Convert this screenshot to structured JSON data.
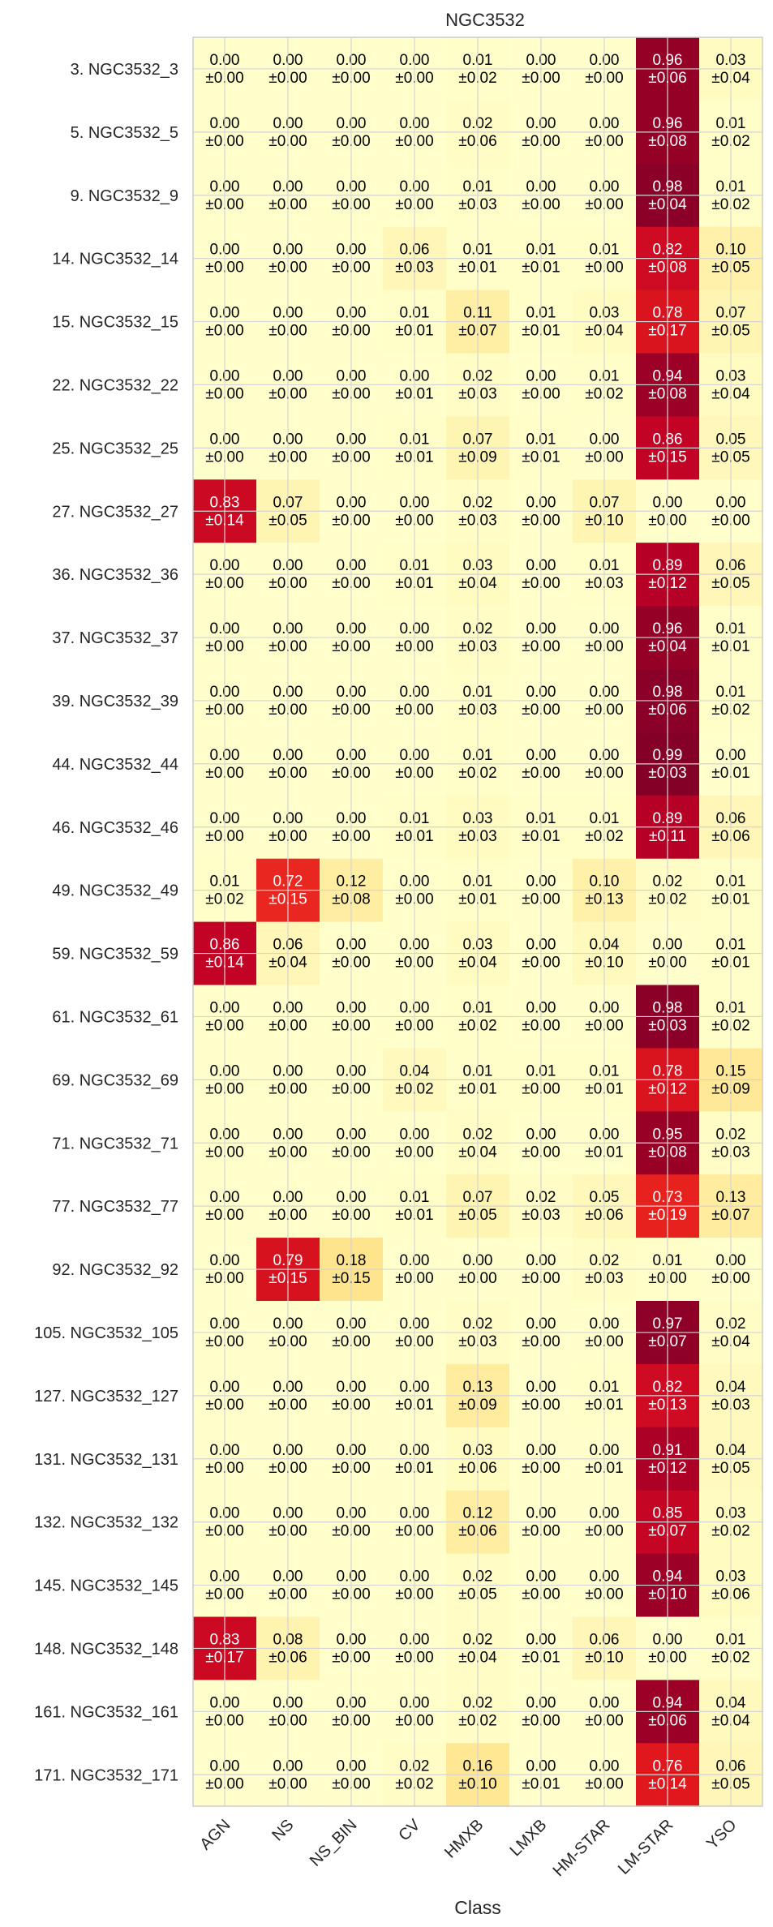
{
  "chart_data": {
    "type": "heatmap",
    "title": "NGC3532",
    "xlabel": "Class",
    "ylabel": "",
    "colormap": [
      "#ffffcc",
      "#ffeda0",
      "#fed976",
      "#feb24c",
      "#fd8d3c",
      "#fc4e2a",
      "#e31a1c",
      "#bd0026",
      "#800026"
    ],
    "value_range": [
      0,
      1
    ],
    "grid": true,
    "classes": [
      "AGN",
      "NS",
      "NS_BIN",
      "CV",
      "HMXB",
      "LMXB",
      "HM-STAR",
      "LM-STAR",
      "YSO"
    ],
    "rows": [
      {
        "label": "3. NGC3532_3",
        "means": [
          "0.00",
          "0.00",
          "0.00",
          "0.00",
          "0.01",
          "0.00",
          "0.00",
          "0.96",
          "0.03"
        ],
        "stds": [
          "±0.00",
          "±0.00",
          "±0.00",
          "±0.00",
          "±0.02",
          "±0.00",
          "±0.00",
          "±0.06",
          "±0.04"
        ]
      },
      {
        "label": "5. NGC3532_5",
        "means": [
          "0.00",
          "0.00",
          "0.00",
          "0.00",
          "0.02",
          "0.00",
          "0.00",
          "0.96",
          "0.01"
        ],
        "stds": [
          "±0.00",
          "±0.00",
          "±0.00",
          "±0.00",
          "±0.06",
          "±0.00",
          "±0.00",
          "±0.08",
          "±0.02"
        ]
      },
      {
        "label": "9. NGC3532_9",
        "means": [
          "0.00",
          "0.00",
          "0.00",
          "0.00",
          "0.01",
          "0.00",
          "0.00",
          "0.98",
          "0.01"
        ],
        "stds": [
          "±0.00",
          "±0.00",
          "±0.00",
          "±0.00",
          "±0.03",
          "±0.00",
          "±0.00",
          "±0.04",
          "±0.02"
        ]
      },
      {
        "label": "14. NGC3532_14",
        "means": [
          "0.00",
          "0.00",
          "0.00",
          "0.06",
          "0.01",
          "0.01",
          "0.01",
          "0.82",
          "0.10"
        ],
        "stds": [
          "±0.00",
          "±0.00",
          "±0.00",
          "±0.03",
          "±0.01",
          "±0.01",
          "±0.00",
          "±0.08",
          "±0.05"
        ]
      },
      {
        "label": "15. NGC3532_15",
        "means": [
          "0.00",
          "0.00",
          "0.00",
          "0.01",
          "0.11",
          "0.01",
          "0.03",
          "0.78",
          "0.07"
        ],
        "stds": [
          "±0.00",
          "±0.00",
          "±0.00",
          "±0.01",
          "±0.07",
          "±0.01",
          "±0.04",
          "±0.17",
          "±0.05"
        ]
      },
      {
        "label": "22. NGC3532_22",
        "means": [
          "0.00",
          "0.00",
          "0.00",
          "0.00",
          "0.02",
          "0.00",
          "0.01",
          "0.94",
          "0.03"
        ],
        "stds": [
          "±0.00",
          "±0.00",
          "±0.00",
          "±0.01",
          "±0.03",
          "±0.00",
          "±0.02",
          "±0.08",
          "±0.04"
        ]
      },
      {
        "label": "25. NGC3532_25",
        "means": [
          "0.00",
          "0.00",
          "0.00",
          "0.01",
          "0.07",
          "0.01",
          "0.00",
          "0.86",
          "0.05"
        ],
        "stds": [
          "±0.00",
          "±0.00",
          "±0.00",
          "±0.01",
          "±0.09",
          "±0.01",
          "±0.00",
          "±0.15",
          "±0.05"
        ]
      },
      {
        "label": "27. NGC3532_27",
        "means": [
          "0.83",
          "0.07",
          "0.00",
          "0.00",
          "0.02",
          "0.00",
          "0.07",
          "0.00",
          "0.00"
        ],
        "stds": [
          "±0.14",
          "±0.05",
          "±0.00",
          "±0.00",
          "±0.03",
          "±0.00",
          "±0.10",
          "±0.00",
          "±0.00"
        ]
      },
      {
        "label": "36. NGC3532_36",
        "means": [
          "0.00",
          "0.00",
          "0.00",
          "0.01",
          "0.03",
          "0.00",
          "0.01",
          "0.89",
          "0.06"
        ],
        "stds": [
          "±0.00",
          "±0.00",
          "±0.00",
          "±0.01",
          "±0.04",
          "±0.00",
          "±0.03",
          "±0.12",
          "±0.05"
        ]
      },
      {
        "label": "37. NGC3532_37",
        "means": [
          "0.00",
          "0.00",
          "0.00",
          "0.00",
          "0.02",
          "0.00",
          "0.00",
          "0.96",
          "0.01"
        ],
        "stds": [
          "±0.00",
          "±0.00",
          "±0.00",
          "±0.00",
          "±0.03",
          "±0.00",
          "±0.00",
          "±0.04",
          "±0.01"
        ]
      },
      {
        "label": "39. NGC3532_39",
        "means": [
          "0.00",
          "0.00",
          "0.00",
          "0.00",
          "0.01",
          "0.00",
          "0.00",
          "0.98",
          "0.01"
        ],
        "stds": [
          "±0.00",
          "±0.00",
          "±0.00",
          "±0.00",
          "±0.03",
          "±0.00",
          "±0.00",
          "±0.06",
          "±0.02"
        ]
      },
      {
        "label": "44. NGC3532_44",
        "means": [
          "0.00",
          "0.00",
          "0.00",
          "0.00",
          "0.01",
          "0.00",
          "0.00",
          "0.99",
          "0.00"
        ],
        "stds": [
          "±0.00",
          "±0.00",
          "±0.00",
          "±0.00",
          "±0.02",
          "±0.00",
          "±0.00",
          "±0.03",
          "±0.01"
        ]
      },
      {
        "label": "46. NGC3532_46",
        "means": [
          "0.00",
          "0.00",
          "0.00",
          "0.01",
          "0.03",
          "0.01",
          "0.01",
          "0.89",
          "0.06"
        ],
        "stds": [
          "±0.00",
          "±0.00",
          "±0.00",
          "±0.01",
          "±0.03",
          "±0.01",
          "±0.02",
          "±0.11",
          "±0.06"
        ]
      },
      {
        "label": "49. NGC3532_49",
        "means": [
          "0.01",
          "0.72",
          "0.12",
          "0.00",
          "0.01",
          "0.00",
          "0.10",
          "0.02",
          "0.01"
        ],
        "stds": [
          "±0.02",
          "±0.15",
          "±0.08",
          "±0.00",
          "±0.01",
          "±0.00",
          "±0.13",
          "±0.02",
          "±0.01"
        ]
      },
      {
        "label": "59. NGC3532_59",
        "means": [
          "0.86",
          "0.06",
          "0.00",
          "0.00",
          "0.03",
          "0.00",
          "0.04",
          "0.00",
          "0.01"
        ],
        "stds": [
          "±0.14",
          "±0.04",
          "±0.00",
          "±0.00",
          "±0.04",
          "±0.00",
          "±0.10",
          "±0.00",
          "±0.01"
        ]
      },
      {
        "label": "61. NGC3532_61",
        "means": [
          "0.00",
          "0.00",
          "0.00",
          "0.00",
          "0.01",
          "0.00",
          "0.00",
          "0.98",
          "0.01"
        ],
        "stds": [
          "±0.00",
          "±0.00",
          "±0.00",
          "±0.00",
          "±0.02",
          "±0.00",
          "±0.00",
          "±0.03",
          "±0.02"
        ]
      },
      {
        "label": "69. NGC3532_69",
        "means": [
          "0.00",
          "0.00",
          "0.00",
          "0.04",
          "0.01",
          "0.01",
          "0.01",
          "0.78",
          "0.15"
        ],
        "stds": [
          "±0.00",
          "±0.00",
          "±0.00",
          "±0.02",
          "±0.01",
          "±0.00",
          "±0.01",
          "±0.12",
          "±0.09"
        ]
      },
      {
        "label": "71. NGC3532_71",
        "means": [
          "0.00",
          "0.00",
          "0.00",
          "0.00",
          "0.02",
          "0.00",
          "0.00",
          "0.95",
          "0.02"
        ],
        "stds": [
          "±0.00",
          "±0.00",
          "±0.00",
          "±0.00",
          "±0.04",
          "±0.00",
          "±0.01",
          "±0.08",
          "±0.03"
        ]
      },
      {
        "label": "77. NGC3532_77",
        "means": [
          "0.00",
          "0.00",
          "0.00",
          "0.01",
          "0.07",
          "0.02",
          "0.05",
          "0.73",
          "0.13"
        ],
        "stds": [
          "±0.00",
          "±0.00",
          "±0.00",
          "±0.01",
          "±0.05",
          "±0.03",
          "±0.06",
          "±0.19",
          "±0.07"
        ]
      },
      {
        "label": "92. NGC3532_92",
        "means": [
          "0.00",
          "0.79",
          "0.18",
          "0.00",
          "0.00",
          "0.00",
          "0.02",
          "0.01",
          "0.00"
        ],
        "stds": [
          "±0.00",
          "±0.15",
          "±0.15",
          "±0.00",
          "±0.00",
          "±0.00",
          "±0.03",
          "±0.00",
          "±0.00"
        ]
      },
      {
        "label": "105. NGC3532_105",
        "means": [
          "0.00",
          "0.00",
          "0.00",
          "0.00",
          "0.02",
          "0.00",
          "0.00",
          "0.97",
          "0.02"
        ],
        "stds": [
          "±0.00",
          "±0.00",
          "±0.00",
          "±0.00",
          "±0.03",
          "±0.00",
          "±0.00",
          "±0.07",
          "±0.04"
        ]
      },
      {
        "label": "127. NGC3532_127",
        "means": [
          "0.00",
          "0.00",
          "0.00",
          "0.00",
          "0.13",
          "0.00",
          "0.01",
          "0.82",
          "0.04"
        ],
        "stds": [
          "±0.00",
          "±0.00",
          "±0.00",
          "±0.01",
          "±0.09",
          "±0.00",
          "±0.01",
          "±0.13",
          "±0.03"
        ]
      },
      {
        "label": "131. NGC3532_131",
        "means": [
          "0.00",
          "0.00",
          "0.00",
          "0.00",
          "0.03",
          "0.00",
          "0.00",
          "0.91",
          "0.04"
        ],
        "stds": [
          "±0.00",
          "±0.00",
          "±0.00",
          "±0.01",
          "±0.06",
          "±0.00",
          "±0.01",
          "±0.12",
          "±0.05"
        ]
      },
      {
        "label": "132. NGC3532_132",
        "means": [
          "0.00",
          "0.00",
          "0.00",
          "0.00",
          "0.12",
          "0.00",
          "0.00",
          "0.85",
          "0.03"
        ],
        "stds": [
          "±0.00",
          "±0.00",
          "±0.00",
          "±0.00",
          "±0.06",
          "±0.00",
          "±0.00",
          "±0.07",
          "±0.02"
        ]
      },
      {
        "label": "145. NGC3532_145",
        "means": [
          "0.00",
          "0.00",
          "0.00",
          "0.00",
          "0.02",
          "0.00",
          "0.00",
          "0.94",
          "0.03"
        ],
        "stds": [
          "±0.00",
          "±0.00",
          "±0.00",
          "±0.00",
          "±0.05",
          "±0.00",
          "±0.00",
          "±0.10",
          "±0.06"
        ]
      },
      {
        "label": "148. NGC3532_148",
        "means": [
          "0.83",
          "0.08",
          "0.00",
          "0.00",
          "0.02",
          "0.00",
          "0.06",
          "0.00",
          "0.01"
        ],
        "stds": [
          "±0.17",
          "±0.06",
          "±0.00",
          "±0.00",
          "±0.04",
          "±0.01",
          "±0.10",
          "±0.00",
          "±0.02"
        ]
      },
      {
        "label": "161. NGC3532_161",
        "means": [
          "0.00",
          "0.00",
          "0.00",
          "0.00",
          "0.02",
          "0.00",
          "0.00",
          "0.94",
          "0.04"
        ],
        "stds": [
          "±0.00",
          "±0.00",
          "±0.00",
          "±0.00",
          "±0.02",
          "±0.00",
          "±0.00",
          "±0.06",
          "±0.04"
        ]
      },
      {
        "label": "171. NGC3532_171",
        "means": [
          "0.00",
          "0.00",
          "0.00",
          "0.02",
          "0.16",
          "0.00",
          "0.00",
          "0.76",
          "0.06"
        ],
        "stds": [
          "±0.00",
          "±0.00",
          "±0.00",
          "±0.02",
          "±0.10",
          "±0.01",
          "±0.00",
          "±0.14",
          "±0.05"
        ]
      }
    ]
  }
}
